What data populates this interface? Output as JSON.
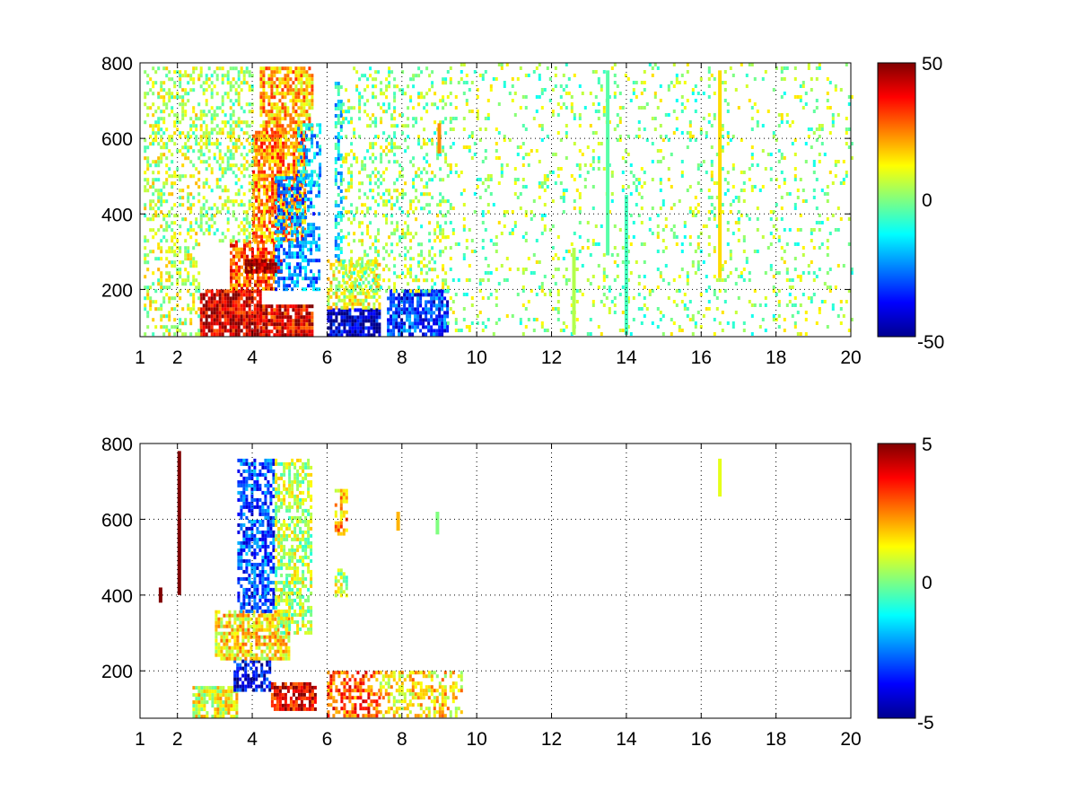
{
  "chart_data": [
    {
      "type": "heatmap",
      "title": "",
      "xlabel": "",
      "ylabel": "",
      "xlim": [
        1,
        20
      ],
      "ylim": [
        75,
        800
      ],
      "x_ticks": [
        "1",
        "2",
        "4",
        "6",
        "8",
        "10",
        "12",
        "14",
        "16",
        "18",
        "20"
      ],
      "y_ticks": [
        "200",
        "400",
        "600",
        "800"
      ],
      "grid": true,
      "colormap": "jet",
      "colorbar": {
        "range": [
          -50,
          50
        ],
        "ticks": [
          "50",
          "0",
          "-50"
        ]
      },
      "regions": [
        {
          "x": [
            2.6,
            4.2
          ],
          "y": [
            80,
            200
          ],
          "value": 42,
          "density": 0.9
        },
        {
          "x": [
            4.2,
            5.6
          ],
          "y": [
            80,
            160
          ],
          "value": 38,
          "density": 0.9
        },
        {
          "x": [
            3.4,
            4.6
          ],
          "y": [
            200,
            330
          ],
          "value": 30,
          "density": 0.85
        },
        {
          "x": [
            3.8,
            4.8
          ],
          "y": [
            250,
            280
          ],
          "value": 48,
          "density": 0.95
        },
        {
          "x": [
            4.0,
            5.4
          ],
          "y": [
            330,
            620
          ],
          "value": 24,
          "density": 0.8
        },
        {
          "x": [
            4.2,
            5.6
          ],
          "y": [
            620,
            790
          ],
          "value": 20,
          "density": 0.7
        },
        {
          "x": [
            4.6,
            5.8
          ],
          "y": [
            200,
            500
          ],
          "value": -22,
          "density": 0.55
        },
        {
          "x": [
            5.2,
            5.8
          ],
          "y": [
            480,
            640
          ],
          "value": -18,
          "density": 0.5
        },
        {
          "x": [
            1.1,
            2.6
          ],
          "y": [
            80,
            790
          ],
          "value": 6,
          "density": 0.35
        },
        {
          "x": [
            2.6,
            4.0
          ],
          "y": [
            330,
            790
          ],
          "value": 4,
          "density": 0.35
        },
        {
          "x": [
            6.0,
            7.4
          ],
          "y": [
            80,
            150
          ],
          "value": -42,
          "density": 0.85
        },
        {
          "x": [
            6.0,
            7.4
          ],
          "y": [
            150,
            280
          ],
          "value": 10,
          "density": 0.6
        },
        {
          "x": [
            7.6,
            9.2
          ],
          "y": [
            80,
            200
          ],
          "value": -32,
          "density": 0.8
        },
        {
          "x": [
            6.2,
            6.4
          ],
          "y": [
            280,
            750
          ],
          "value": -15,
          "density": 0.6
        },
        {
          "x": [
            6.4,
            9.2
          ],
          "y": [
            200,
            790
          ],
          "value": 3,
          "density": 0.25
        },
        {
          "x": [
            9.2,
            20.0
          ],
          "y": [
            80,
            800
          ],
          "value": 2,
          "density": 0.12
        }
      ],
      "streaks": [
        {
          "x": 16.5,
          "y": [
            230,
            780
          ],
          "value": 16
        },
        {
          "x": 13.5,
          "y": [
            290,
            780
          ],
          "value": -4
        },
        {
          "x": 12.6,
          "y": [
            80,
            310
          ],
          "value": 5
        },
        {
          "x": 14.0,
          "y": [
            80,
            450
          ],
          "value": -6
        },
        {
          "x": 9.0,
          "y": [
            560,
            640
          ],
          "value": 24
        }
      ]
    },
    {
      "type": "heatmap",
      "title": "",
      "xlabel": "",
      "ylabel": "",
      "xlim": [
        1,
        20
      ],
      "ylim": [
        75,
        800
      ],
      "x_ticks": [
        "1",
        "2",
        "4",
        "6",
        "8",
        "10",
        "12",
        "14",
        "16",
        "18",
        "20"
      ],
      "y_ticks": [
        "200",
        "400",
        "600",
        "800"
      ],
      "grid": true,
      "colormap": "jet",
      "colorbar": {
        "range": [
          -5,
          5
        ],
        "ticks": [
          "5",
          "0",
          "-5"
        ]
      },
      "regions": [
        {
          "x": [
            2.4,
            3.6
          ],
          "y": [
            80,
            160
          ],
          "value": 1,
          "density": 0.85
        },
        {
          "x": [
            3.5,
            4.5
          ],
          "y": [
            150,
            230
          ],
          "value": -4,
          "density": 0.7
        },
        {
          "x": [
            4.5,
            5.7
          ],
          "y": [
            100,
            170
          ],
          "value": 4,
          "density": 0.8
        },
        {
          "x": [
            3.0,
            5.0
          ],
          "y": [
            230,
            360
          ],
          "value": 1.5,
          "density": 0.75
        },
        {
          "x": [
            3.6,
            4.6
          ],
          "y": [
            360,
            760
          ],
          "value": -3,
          "density": 0.65
        },
        {
          "x": [
            4.6,
            5.6
          ],
          "y": [
            300,
            760
          ],
          "value": 0.5,
          "density": 0.6
        },
        {
          "x": [
            6.0,
            7.4
          ],
          "y": [
            80,
            200
          ],
          "value": 3,
          "density": 0.6
        },
        {
          "x": [
            7.4,
            9.6
          ],
          "y": [
            80,
            200
          ],
          "value": 1.5,
          "density": 0.5
        },
        {
          "x": [
            6.2,
            6.5
          ],
          "y": [
            400,
            470
          ],
          "value": 0.5,
          "density": 0.6
        },
        {
          "x": [
            6.2,
            6.5
          ],
          "y": [
            560,
            680
          ],
          "value": 2,
          "density": 0.6
        }
      ],
      "streaks": [
        {
          "x": 2.05,
          "y": [
            400,
            780
          ],
          "value": 5
        },
        {
          "x": 1.55,
          "y": [
            380,
            420
          ],
          "value": 5
        },
        {
          "x": 16.5,
          "y": [
            660,
            760
          ],
          "value": 1
        },
        {
          "x": 7.9,
          "y": [
            570,
            620
          ],
          "value": 2
        },
        {
          "x": 8.95,
          "y": [
            560,
            620
          ],
          "value": 0
        }
      ]
    }
  ]
}
